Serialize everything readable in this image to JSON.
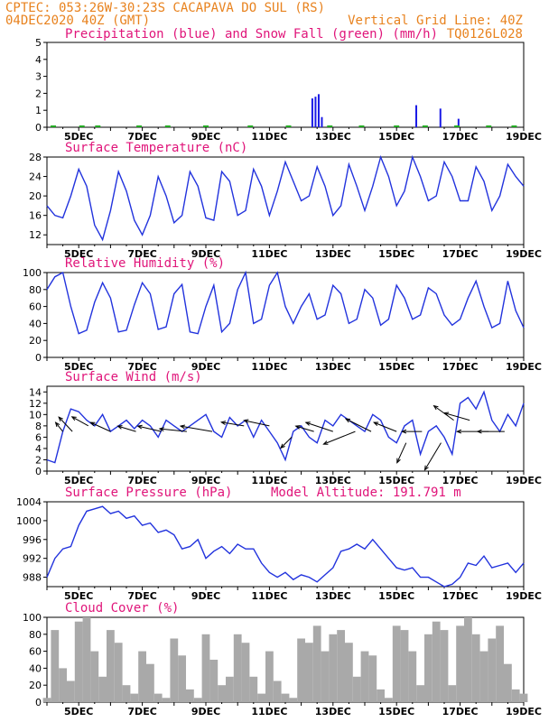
{
  "header": {
    "line1": "CPTEC:   053:26W-30:23S   CACAPAVA DO SUL (RS)",
    "line2_left": "04DEC2020 40Z (GMT)",
    "line2_right": "Vertical Grid Line: 40Z",
    "line3_right": "TQ0126L028"
  },
  "x_axis_labels": [
    "5DEC",
    "7DEC",
    "9DEC",
    "11DEC",
    "13DEC",
    "15DEC",
    "17DEC",
    "19DEC"
  ],
  "colors": {
    "line": "#2233dd",
    "precip": "#1a1ae6",
    "snow": "#22aa22",
    "cloud": "#a9a9a9",
    "header": "#e8821e",
    "title": "#e0157a"
  },
  "chart_data": [
    {
      "type": "bar",
      "title": "Precipitation (blue) and Snow Fall (green) (mm/h)",
      "ylim": [
        0,
        5
      ],
      "yticks": [
        "0",
        "1",
        "2",
        "3",
        "4",
        "5"
      ],
      "series": [
        {
          "name": "Precipitation",
          "x": [
            12.35,
            12.45,
            12.55,
            12.65,
            15.62,
            16.38,
            16.95
          ],
          "values": [
            1.7,
            1.8,
            1.95,
            0.6,
            1.3,
            1.1,
            0.5
          ]
        }
      ]
    },
    {
      "type": "line",
      "title": "Surface Temperature (nC)",
      "ylim": [
        10,
        28
      ],
      "yticks": [
        "12",
        "16",
        "20",
        "24",
        "28"
      ],
      "x": [
        4,
        4.25,
        4.5,
        4.75,
        5,
        5.25,
        5.5,
        5.75,
        6,
        6.25,
        6.5,
        6.75,
        7,
        7.25,
        7.5,
        7.75,
        8,
        8.25,
        8.5,
        8.75,
        9,
        9.25,
        9.5,
        9.75,
        10,
        10.25,
        10.5,
        10.75,
        11,
        11.25,
        11.5,
        11.75,
        12,
        12.25,
        12.5,
        12.75,
        13,
        13.25,
        13.5,
        13.75,
        14,
        14.25,
        14.5,
        14.75,
        15,
        15.25,
        15.5,
        15.75,
        16,
        16.25,
        16.5,
        16.75,
        17,
        17.25,
        17.5,
        17.75,
        18,
        18.25,
        18.5,
        18.75,
        19
      ],
      "values": [
        18,
        16,
        15.5,
        20,
        25.5,
        22,
        14,
        11,
        17,
        25,
        21,
        15,
        12,
        16,
        24,
        20,
        14.5,
        16,
        25,
        22,
        15.5,
        15,
        25,
        23,
        16,
        17,
        25.5,
        22,
        16,
        21,
        27,
        23,
        19,
        20,
        26,
        22,
        16,
        18,
        26.5,
        22,
        17,
        22,
        28,
        24,
        18,
        21,
        28,
        24,
        19,
        20,
        27,
        24,
        19,
        19,
        26,
        23,
        17,
        20,
        26.5,
        24,
        22
      ],
      "ylabel": ""
    },
    {
      "type": "line",
      "title": "Relative Humidity (%)",
      "ylim": [
        0,
        100
      ],
      "yticks": [
        "0",
        "20",
        "40",
        "60",
        "80",
        "100"
      ],
      "x": [
        4,
        4.25,
        4.5,
        4.75,
        5,
        5.25,
        5.5,
        5.75,
        6,
        6.25,
        6.5,
        6.75,
        7,
        7.25,
        7.5,
        7.75,
        8,
        8.25,
        8.5,
        8.75,
        9,
        9.25,
        9.5,
        9.75,
        10,
        10.25,
        10.5,
        10.75,
        11,
        11.25,
        11.5,
        11.75,
        12,
        12.25,
        12.5,
        12.75,
        13,
        13.25,
        13.5,
        13.75,
        14,
        14.25,
        14.5,
        14.75,
        15,
        15.25,
        15.5,
        15.75,
        16,
        16.25,
        16.5,
        16.75,
        17,
        17.25,
        17.5,
        17.75,
        18,
        18.25,
        18.5,
        18.75,
        19
      ],
      "values": [
        80,
        95,
        100,
        60,
        28,
        32,
        65,
        88,
        70,
        30,
        32,
        62,
        88,
        75,
        33,
        36,
        75,
        86,
        30,
        28,
        60,
        85,
        30,
        40,
        80,
        100,
        40,
        45,
        85,
        100,
        60,
        40,
        60,
        75,
        45,
        50,
        85,
        75,
        40,
        45,
        80,
        70,
        38,
        45,
        85,
        70,
        45,
        50,
        82,
        75,
        50,
        38,
        45,
        70,
        90,
        60,
        35,
        40,
        90,
        55,
        35
      ],
      "ylabel": ""
    },
    {
      "type": "line",
      "title": "Surface Wind (m/s)",
      "ylim": [
        0,
        15
      ],
      "yticks": [
        "0",
        "2",
        "4",
        "6",
        "8",
        "10",
        "12",
        "14"
      ],
      "x": [
        4,
        4.25,
        4.5,
        4.75,
        5,
        5.25,
        5.5,
        5.75,
        6,
        6.25,
        6.5,
        6.75,
        7,
        7.25,
        7.5,
        7.75,
        8,
        8.25,
        8.5,
        8.75,
        9,
        9.25,
        9.5,
        9.75,
        10,
        10.25,
        10.5,
        10.75,
        11,
        11.25,
        11.5,
        11.75,
        12,
        12.25,
        12.5,
        12.75,
        13,
        13.25,
        13.5,
        13.75,
        14,
        14.25,
        14.5,
        14.75,
        15,
        15.25,
        15.5,
        15.75,
        16,
        16.25,
        16.5,
        16.75,
        17,
        17.25,
        17.5,
        17.75,
        18,
        18.25,
        18.5,
        18.75,
        19
      ],
      "values": [
        2,
        1.5,
        7,
        11,
        10.5,
        9,
        8,
        10,
        7,
        8,
        9,
        7.5,
        9,
        8,
        6,
        9,
        8,
        7,
        8,
        9,
        10,
        7,
        6,
        9.5,
        8,
        9,
        6,
        9,
        7,
        5,
        2,
        7,
        8,
        6,
        5,
        9,
        8,
        10,
        9,
        8,
        7,
        10,
        9,
        6,
        5,
        8,
        9,
        3,
        7,
        8,
        6,
        3,
        12,
        13,
        11,
        14,
        9,
        7,
        10,
        8,
        12
      ],
      "ylabel": ""
    },
    {
      "type": "line",
      "title": "Surface Pressure (hPa)",
      "annotation": "Model Altitude: 191.791 m",
      "ylim": [
        986,
        1004
      ],
      "yticks": [
        "988",
        "992",
        "996",
        "1000",
        "1004"
      ],
      "x": [
        4,
        4.25,
        4.5,
        4.75,
        5,
        5.25,
        5.5,
        5.75,
        6,
        6.25,
        6.5,
        6.75,
        7,
        7.25,
        7.5,
        7.75,
        8,
        8.25,
        8.5,
        8.75,
        9,
        9.25,
        9.5,
        9.75,
        10,
        10.25,
        10.5,
        10.75,
        11,
        11.25,
        11.5,
        11.75,
        12,
        12.25,
        12.5,
        12.75,
        13,
        13.25,
        13.5,
        13.75,
        14,
        14.25,
        14.5,
        14.75,
        15,
        15.25,
        15.5,
        15.75,
        16,
        16.25,
        16.5,
        16.75,
        17,
        17.25,
        17.5,
        17.75,
        18,
        18.25,
        18.5,
        18.75,
        19
      ],
      "values": [
        988,
        992,
        994,
        994.5,
        999,
        1002,
        1002.5,
        1003,
        1001.5,
        1002,
        1000.5,
        1001,
        999,
        999.5,
        997.5,
        998,
        997,
        994,
        994.5,
        996,
        992,
        993.5,
        994.5,
        993,
        995,
        994,
        994,
        991,
        989,
        988,
        989,
        987.5,
        988.5,
        988,
        987,
        988.5,
        990,
        993.5,
        994,
        995,
        994,
        996,
        994,
        992,
        990,
        989.5,
        990,
        988,
        988,
        987,
        986,
        986.5,
        988,
        991,
        990.5,
        992.5,
        990,
        990.5,
        991,
        989,
        991
      ],
      "ylabel": ""
    },
    {
      "type": "bar",
      "title": "Cloud Cover (%)",
      "ylim": [
        0,
        100
      ],
      "yticks": [
        "0",
        "20",
        "40",
        "60",
        "80",
        "100"
      ],
      "x": [
        4,
        4.25,
        4.5,
        4.75,
        5,
        5.25,
        5.5,
        5.75,
        6,
        6.25,
        6.5,
        6.75,
        7,
        7.25,
        7.5,
        7.75,
        8,
        8.25,
        8.5,
        8.75,
        9,
        9.25,
        9.5,
        9.75,
        10,
        10.25,
        10.5,
        10.75,
        11,
        11.25,
        11.5,
        11.75,
        12,
        12.25,
        12.5,
        12.75,
        13,
        13.25,
        13.5,
        13.75,
        14,
        14.25,
        14.5,
        14.75,
        15,
        15.25,
        15.5,
        15.75,
        16,
        16.25,
        16.5,
        16.75,
        17,
        17.25,
        17.5,
        17.75,
        18,
        18.25,
        18.5,
        18.75,
        19
      ],
      "values": [
        5,
        85,
        40,
        25,
        95,
        100,
        60,
        30,
        85,
        70,
        20,
        10,
        60,
        45,
        10,
        5,
        75,
        55,
        15,
        5,
        80,
        50,
        20,
        30,
        80,
        70,
        30,
        10,
        60,
        25,
        10,
        5,
        75,
        70,
        90,
        60,
        80,
        85,
        70,
        30,
        60,
        55,
        15,
        5,
        90,
        85,
        60,
        20,
        80,
        95,
        85,
        20,
        90,
        100,
        80,
        60,
        75,
        90,
        45,
        15,
        10
      ]
    }
  ]
}
